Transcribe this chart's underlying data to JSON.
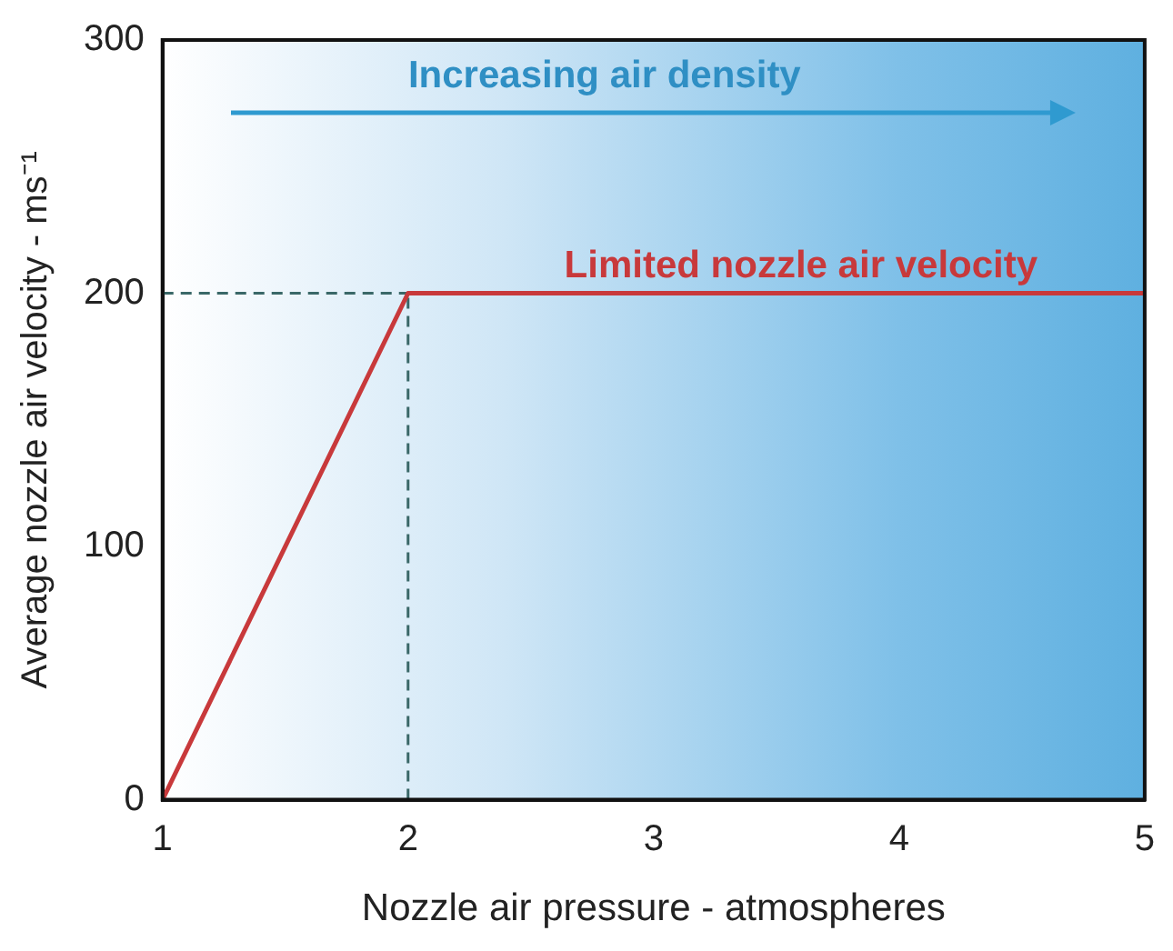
{
  "chart_data": {
    "type": "line",
    "xlabel": "Nozzle air pressure - atmospheres",
    "ylabel": "Average nozzle air velocity - ms⁻¹",
    "xlim": [
      1,
      5
    ],
    "xticks": [
      1,
      2,
      3,
      4,
      5
    ],
    "ylim": [
      0,
      300
    ],
    "yticks": [
      0,
      100,
      200,
      300
    ],
    "grid": false,
    "legend": false,
    "marker": "none",
    "series": [
      {
        "x": [
          1,
          2,
          5
        ],
        "values": [
          0,
          200,
          200
        ],
        "color": "#c8393b",
        "line_style": "solid"
      },
      {
        "x": [
          1,
          2
        ],
        "values": [
          200,
          200
        ],
        "color": "#3a6868",
        "line_style": "dashed"
      },
      {
        "x": [
          2,
          2
        ],
        "values": [
          0,
          200
        ],
        "color": "#3a6868",
        "line_style": "dashed"
      }
    ],
    "annotations": [
      "Increasing air density",
      {
        "text": "Limited nozzle air velocity",
        "x": 3.6,
        "y": 200
      }
    ]
  }
}
